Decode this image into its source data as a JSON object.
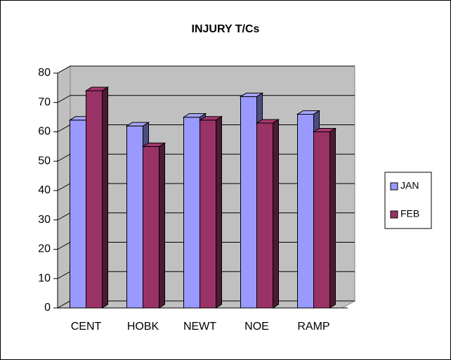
{
  "chart_data": {
    "type": "bar3d",
    "title": "INJURY T/Cs",
    "categories": [
      "CENT",
      "HOBK",
      "NEWT",
      "NOE",
      "RAMP"
    ],
    "series": [
      {
        "name": "JAN",
        "color": "#9999ff",
        "values": [
          64,
          62,
          65,
          72,
          66
        ]
      },
      {
        "name": "FEB",
        "color": "#993366",
        "values": [
          74,
          55,
          64,
          63,
          60
        ]
      }
    ],
    "ylim": [
      0,
      80
    ],
    "yticks": [
      0,
      10,
      20,
      30,
      40,
      50,
      60,
      70,
      80
    ],
    "grid": true,
    "legend": "right"
  }
}
